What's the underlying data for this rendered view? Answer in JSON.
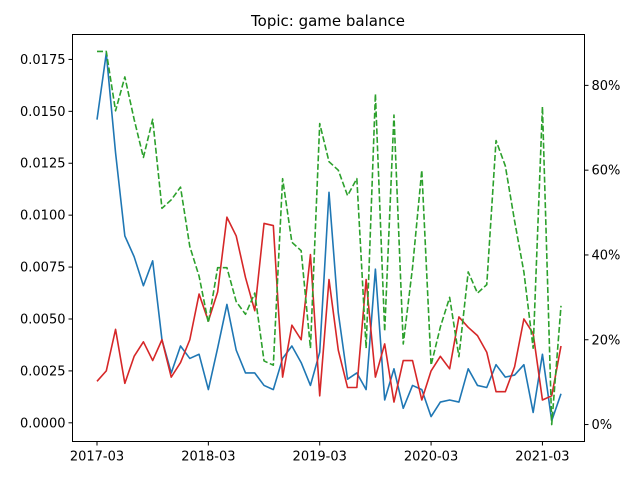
{
  "chart_data": {
    "type": "line",
    "title": "Topic: game balance",
    "xlabel": "",
    "ylabel": "",
    "y2label": "",
    "x_ticks": [
      "2017-03",
      "2018-03",
      "2019-03",
      "2020-03",
      "2021-03"
    ],
    "x_tick_index": [
      0,
      12,
      24,
      36,
      48
    ],
    "ylim": [
      -0.0009,
      0.0187
    ],
    "y_ticks": [
      "0.0000",
      "0.0025",
      "0.0050",
      "0.0075",
      "0.0100",
      "0.0125",
      "0.0150",
      "0.0175"
    ],
    "y_tick_values": [
      0,
      0.0025,
      0.005,
      0.0075,
      0.01,
      0.0125,
      0.015,
      0.0175
    ],
    "y2lim": [
      -4,
      92
    ],
    "y2_ticks": [
      "0%",
      "20%",
      "40%",
      "60%",
      "80%"
    ],
    "y2_tick_values": [
      0,
      20,
      40,
      60,
      80
    ],
    "grid": false,
    "legend": "none",
    "series": [
      {
        "axis": "left",
        "color": "#1f77b4",
        "style": "solid",
        "values": [
          0.0146,
          0.0178,
          0.013,
          0.009,
          0.008,
          0.0066,
          0.0078,
          0.004,
          0.0024,
          0.0037,
          0.0031,
          0.0033,
          0.0016,
          0.0036,
          0.0057,
          0.0035,
          0.0024,
          0.0024,
          0.0018,
          0.0016,
          0.0031,
          0.0037,
          0.0029,
          0.0018,
          0.0034,
          0.0111,
          0.0053,
          0.0021,
          0.0024,
          0.0016,
          0.0074,
          0.0011,
          0.0026,
          0.0007,
          0.0018,
          0.0016,
          0.0003,
          0.001,
          0.0011,
          0.001,
          0.0026,
          0.0018,
          0.0017,
          0.0028,
          0.0022,
          0.0023,
          0.0028,
          0.0005,
          0.0033,
          0.0001,
          0.0014
        ]
      },
      {
        "axis": "left",
        "color": "#d62728",
        "style": "solid",
        "values": [
          0.002,
          0.0025,
          0.0045,
          0.0019,
          0.0032,
          0.0039,
          0.003,
          0.004,
          0.0022,
          0.0029,
          0.004,
          0.0062,
          0.0049,
          0.0063,
          0.0099,
          0.009,
          0.007,
          0.0054,
          0.0096,
          0.0095,
          0.0022,
          0.0047,
          0.004,
          0.0081,
          0.0013,
          0.0069,
          0.0035,
          0.0017,
          0.0017,
          0.0069,
          0.0022,
          0.0038,
          0.001,
          0.003,
          0.003,
          0.0011,
          0.0025,
          0.0032,
          0.0026,
          0.0051,
          0.0046,
          0.0042,
          0.0034,
          0.0015,
          0.0015,
          0.0027,
          0.005,
          0.0043,
          0.0011,
          0.0013,
          0.0037
        ]
      },
      {
        "axis": "right",
        "color": "#2ca02c",
        "style": "dashed",
        "values": [
          88,
          88,
          74,
          82,
          72,
          63,
          72,
          51,
          53,
          56,
          42,
          35,
          24,
          37,
          37,
          29,
          26,
          31,
          15,
          14,
          58,
          43,
          41,
          18,
          71,
          62,
          60,
          54,
          58,
          18,
          78,
          22,
          73,
          19,
          37,
          60,
          14,
          23,
          30,
          16,
          36,
          31,
          33,
          67,
          61,
          48,
          36,
          18,
          75,
          0,
          28
        ]
      }
    ]
  }
}
